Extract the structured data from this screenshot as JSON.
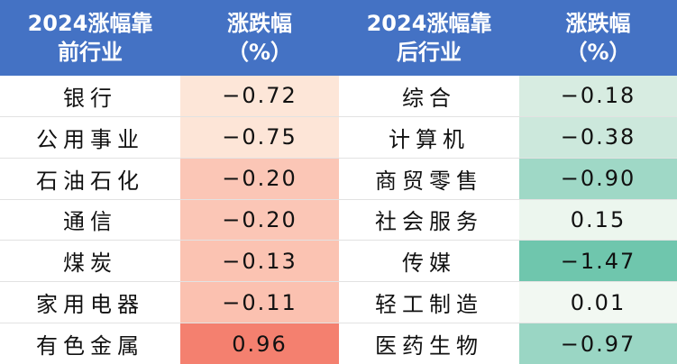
{
  "headers": {
    "left_industry": "2024涨幅靠前行业",
    "left_industry_line1": "2024涨幅靠",
    "left_industry_line2": "前行业",
    "left_change": "涨跌幅",
    "left_change_unit": "（%）",
    "right_industry": "2024涨幅靠后行业",
    "right_industry_line1": "2024涨幅靠",
    "right_industry_line2": "后行业",
    "right_change": "涨跌幅",
    "right_change_unit": "（%）"
  },
  "rows": [
    {
      "top_industry": "银行",
      "top_change": "−0.72",
      "top_color": "#fde6d8",
      "bottom_industry": "综合",
      "bottom_change": "−0.18",
      "bottom_color": "#d7ece1"
    },
    {
      "top_industry": "公用事业",
      "top_change": "−0.75",
      "top_color": "#fde5d7",
      "bottom_industry": "计算机",
      "bottom_change": "−0.38",
      "bottom_color": "#cce8dc"
    },
    {
      "top_industry": "石油石化",
      "top_change": "−0.20",
      "top_color": "#fbc6b6",
      "bottom_industry": "商贸零售",
      "bottom_change": "−0.90",
      "bottom_color": "#9fd8c6"
    },
    {
      "top_industry": "通信",
      "top_change": "−0.20",
      "top_color": "#fbc6b6",
      "bottom_industry": "社会服务",
      "bottom_change": "0.15",
      "bottom_color": "#ecf6ee"
    },
    {
      "top_industry": "煤炭",
      "top_change": "−0.13",
      "top_color": "#fbc3b2",
      "bottom_industry": "传媒",
      "bottom_change": "−1.47",
      "bottom_color": "#6fc6ad"
    },
    {
      "top_industry": "家用电器",
      "top_change": "−0.11",
      "top_color": "#fbc1b0",
      "bottom_industry": "轻工制造",
      "bottom_change": "0.01",
      "bottom_color": "#f2f8f2"
    },
    {
      "top_industry": "有色金属",
      "top_change": "0.96",
      "top_color": "#f4806f",
      "bottom_industry": "医药生物",
      "bottom_change": "−0.97",
      "bottom_color": "#9ad6c4"
    }
  ],
  "colors": {
    "header_bg": "#4472c4",
    "header_text": "#ffffff"
  }
}
